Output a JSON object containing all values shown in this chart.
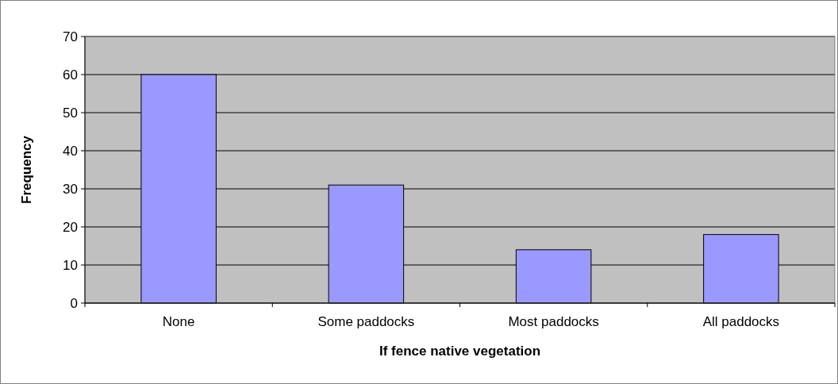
{
  "chart_data": {
    "type": "bar",
    "xlabel": "If fence native vegetation",
    "ylabel": "Frequency",
    "categories": [
      "None",
      "Some paddocks",
      "Most paddocks",
      "All paddocks"
    ],
    "values": [
      60,
      31,
      14,
      18
    ],
    "color": "#9999ff",
    "ylim": [
      0,
      70
    ],
    "yticks": [
      0,
      10,
      20,
      30,
      40,
      50,
      60,
      70
    ],
    "grid": "y"
  }
}
